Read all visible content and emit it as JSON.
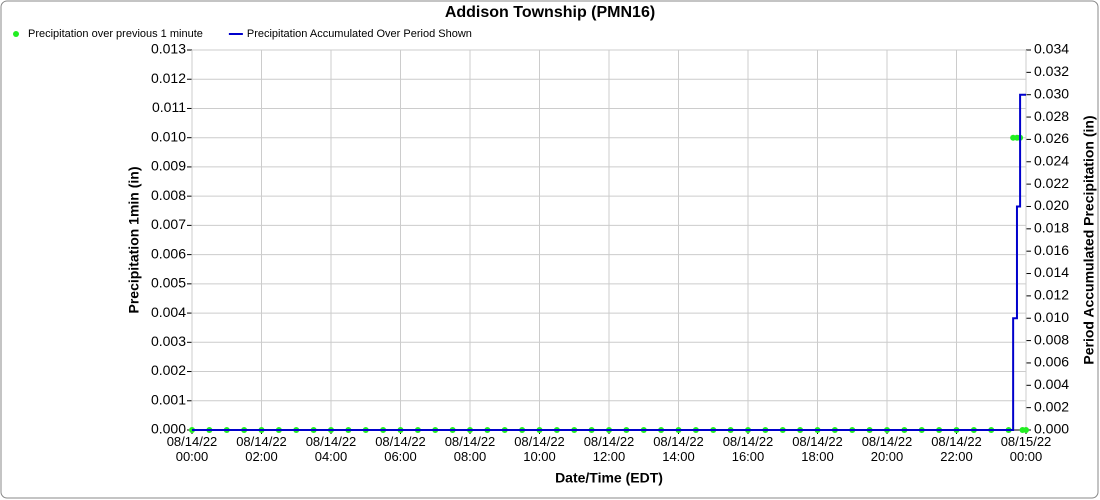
{
  "chart_data": {
    "type": "line",
    "title": "Addison Township (PMN16)",
    "x_label": "Date/Time (EDT)",
    "y_label": "Precipitation 1min (in)",
    "y2_label": "Period Accumulated Precipitation (in)",
    "xlim": [
      0,
      24
    ],
    "xticks": [
      {
        "value": 0,
        "label": "08/14/22\n00:00"
      },
      {
        "value": 2,
        "label": "08/14/22\n02:00"
      },
      {
        "value": 4,
        "label": "08/14/22\n04:00"
      },
      {
        "value": 6,
        "label": "08/14/22\n06:00"
      },
      {
        "value": 8,
        "label": "08/14/22\n08:00"
      },
      {
        "value": 10,
        "label": "08/14/22\n10:00"
      },
      {
        "value": 12,
        "label": "08/14/22\n12:00"
      },
      {
        "value": 14,
        "label": "08/14/22\n14:00"
      },
      {
        "value": 16,
        "label": "08/14/22\n16:00"
      },
      {
        "value": 18,
        "label": "08/14/22\n18:00"
      },
      {
        "value": 20,
        "label": "08/14/22\n20:00"
      },
      {
        "value": 22,
        "label": "08/14/22\n22:00"
      },
      {
        "value": 24,
        "label": "08/15/22\n00:00"
      }
    ],
    "ylim": [
      0,
      0.013
    ],
    "yticks": [
      {
        "value": 0,
        "label": "0.000"
      },
      {
        "value": 0.001,
        "label": "0.001"
      },
      {
        "value": 0.002,
        "label": "0.002"
      },
      {
        "value": 0.003,
        "label": "0.003"
      },
      {
        "value": 0.004,
        "label": "0.004"
      },
      {
        "value": 0.005,
        "label": "0.005"
      },
      {
        "value": 0.006,
        "label": "0.006"
      },
      {
        "value": 0.007,
        "label": "0.007"
      },
      {
        "value": 0.008,
        "label": "0.008"
      },
      {
        "value": 0.009,
        "label": "0.009"
      },
      {
        "value": 0.01,
        "label": "0.010"
      },
      {
        "value": 0.011,
        "label": "0.011"
      },
      {
        "value": 0.012,
        "label": "0.012"
      },
      {
        "value": 0.013,
        "label": "0.013"
      }
    ],
    "y2lim": [
      0,
      0.034
    ],
    "y2ticks": [
      {
        "value": 0,
        "label": "0.000"
      },
      {
        "value": 0.002,
        "label": "0.002"
      },
      {
        "value": 0.004,
        "label": "0.004"
      },
      {
        "value": 0.006,
        "label": "0.006"
      },
      {
        "value": 0.008,
        "label": "0.008"
      },
      {
        "value": 0.01,
        "label": "0.010"
      },
      {
        "value": 0.012,
        "label": "0.012"
      },
      {
        "value": 0.014,
        "label": "0.014"
      },
      {
        "value": 0.016,
        "label": "0.016"
      },
      {
        "value": 0.018,
        "label": "0.018"
      },
      {
        "value": 0.02,
        "label": "0.020"
      },
      {
        "value": 0.022,
        "label": "0.022"
      },
      {
        "value": 0.024,
        "label": "0.024"
      },
      {
        "value": 0.026,
        "label": "0.026"
      },
      {
        "value": 0.028,
        "label": "0.028"
      },
      {
        "value": 0.03,
        "label": "0.030"
      },
      {
        "value": 0.032,
        "label": "0.032"
      },
      {
        "value": 0.034,
        "label": "0.034"
      }
    ],
    "grid": true,
    "legend": "top-left",
    "series": [
      {
        "name": "Precipitation over previous 1 minute",
        "color": "#22ee22",
        "mode": "markers",
        "x": [
          0,
          0.5,
          1,
          1.5,
          2,
          2.5,
          3,
          3.5,
          4,
          4.5,
          5,
          5.5,
          6,
          6.5,
          7,
          7.5,
          8,
          8.5,
          9,
          9.5,
          10,
          10.5,
          11,
          11.5,
          12,
          12.5,
          13,
          13.5,
          14,
          14.5,
          15,
          15.5,
          16,
          16.5,
          17,
          17.5,
          18,
          18.5,
          19,
          19.5,
          20,
          20.5,
          21,
          21.5,
          22,
          22.5,
          23,
          23.5,
          23.63,
          23.74,
          23.83,
          23.9,
          24
        ],
        "values": [
          0,
          0,
          0,
          0,
          0,
          0,
          0,
          0,
          0,
          0,
          0,
          0,
          0,
          0,
          0,
          0,
          0,
          0,
          0,
          0,
          0,
          0,
          0,
          0,
          0,
          0,
          0,
          0,
          0,
          0,
          0,
          0,
          0,
          0,
          0,
          0,
          0,
          0,
          0,
          0,
          0,
          0,
          0,
          0,
          0,
          0,
          0,
          0,
          0.01,
          0.01,
          0.01,
          0,
          0
        ]
      },
      {
        "name": "Precipitation Accumulated Over Period Shown",
        "color": "#0000cc",
        "mode": "lines",
        "axis": "y2",
        "x": [
          0,
          23.63,
          23.63,
          23.74,
          23.74,
          23.83,
          23.83,
          24
        ],
        "values": [
          0,
          0,
          0.01,
          0.01,
          0.02,
          0.02,
          0.03,
          0.03
        ]
      }
    ]
  }
}
